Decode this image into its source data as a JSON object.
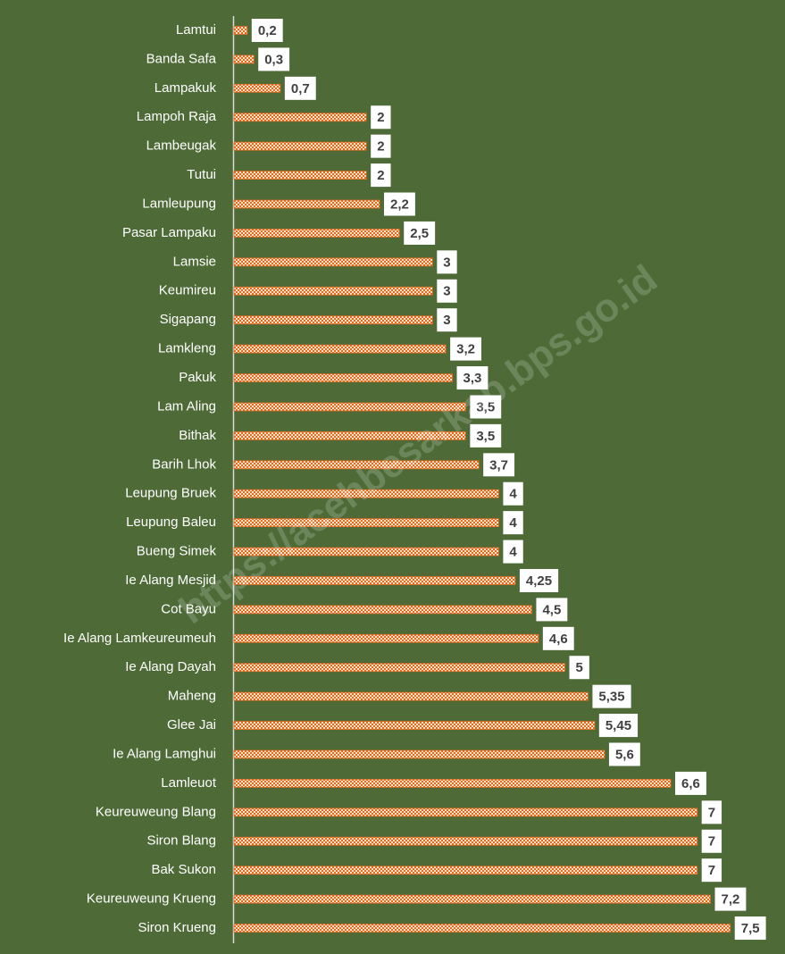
{
  "chart_data": {
    "type": "bar",
    "orientation": "horizontal",
    "categories": [
      "Lamtui",
      "Banda Safa",
      "Lampakuk",
      "Lampoh Raja",
      "Lambeugak",
      "Tutui",
      "Lamleupung",
      "Pasar Lampaku",
      "Lamsie",
      "Keumireu",
      "Sigapang",
      "Lamkleng",
      "Pakuk",
      "Lam Aling",
      "Bithak",
      "Barih Lhok",
      "Leupung Bruek",
      "Leupung Baleu",
      "Bueng Simek",
      "Ie Alang Mesjid",
      "Cot Bayu",
      "Ie Alang Lamkeureumeuh",
      "Ie Alang Dayah",
      "Maheng",
      "Glee Jai",
      "Ie Alang Lamghui",
      "Lamleuot",
      "Keureuweung Blang",
      "Siron Blang",
      "Bak Sukon",
      "Keureuweung Krueng",
      "Siron Krueng"
    ],
    "values": [
      0.2,
      0.3,
      0.7,
      2,
      2,
      2,
      2.2,
      2.5,
      3,
      3,
      3,
      3.2,
      3.3,
      3.5,
      3.5,
      3.7,
      4,
      4,
      4,
      4.25,
      4.5,
      4.6,
      5,
      5.35,
      5.45,
      5.6,
      6.6,
      7,
      7,
      7,
      7.2,
      7.5
    ],
    "value_labels": [
      "0,2",
      "0,3",
      "0,7",
      "2",
      "2",
      "2",
      "2,2",
      "2,5",
      "3",
      "3",
      "3",
      "3,2",
      "3,3",
      "3,5",
      "3,5",
      "3,7",
      "4",
      "4",
      "4",
      "4,25",
      "4,5",
      "4,6",
      "5",
      "5,35",
      "5,45",
      "5,6",
      "6,6",
      "7",
      "7",
      "7",
      "7,2",
      "7,5"
    ],
    "color": "#e2691f",
    "watermark": "https://acehbesarkab.bps.go.id"
  }
}
